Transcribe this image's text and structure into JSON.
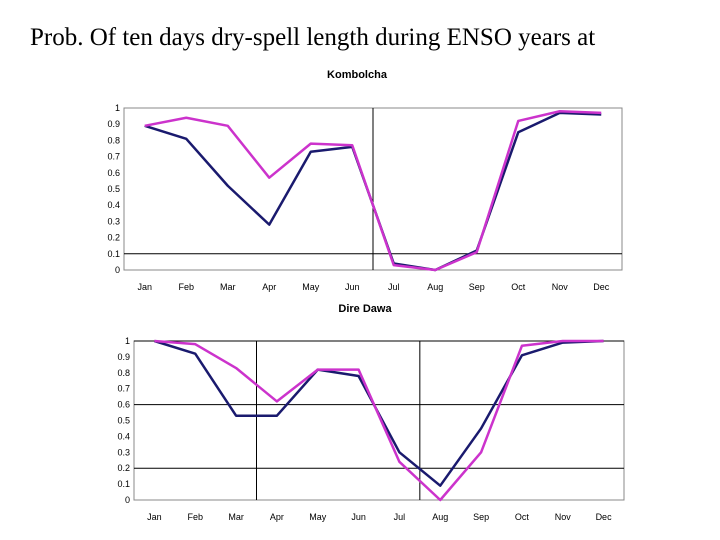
{
  "page": {
    "title": "Prob. Of ten days dry-spell length during ENSO years at"
  },
  "chart_data": [
    {
      "type": "line",
      "title": "Kombolcha",
      "categories": [
        "Jan",
        "Feb",
        "Mar",
        "Apr",
        "May",
        "Jun",
        "Jul",
        "Aug",
        "Sep",
        "Oct",
        "Nov",
        "Dec"
      ],
      "ylim": [
        0,
        1
      ],
      "yticks": [
        "0",
        "0.1",
        "0.2",
        "0.3",
        "0.4",
        "0.5",
        "0.6",
        "0.7",
        "0.8",
        "0.9",
        "1"
      ],
      "reference_line_y": 0.1,
      "reference_line_after_category": "Jun",
      "series": [
        {
          "color": "#1a1a6e",
          "values": [
            0.89,
            0.81,
            0.52,
            0.28,
            0.73,
            0.76,
            0.04,
            0.0,
            0.12,
            0.85,
            0.97,
            0.96
          ]
        },
        {
          "color": "#cc33cc",
          "values": [
            0.89,
            0.94,
            0.89,
            0.57,
            0.78,
            0.77,
            0.03,
            0.0,
            0.11,
            0.92,
            0.98,
            0.97
          ]
        }
      ]
    },
    {
      "type": "line",
      "title": "Dire  Dawa",
      "categories": [
        "Jan",
        "Feb",
        "Mar",
        "Apr",
        "May",
        "Jun",
        "Jul",
        "Aug",
        "Sep",
        "Oct",
        "Nov",
        "Dec"
      ],
      "ylim": [
        0,
        1
      ],
      "yticks": [
        "0",
        "0.1",
        "0.2",
        "0.3",
        "0.4",
        "0.5",
        "0.6",
        "0.7",
        "0.8",
        "0.9",
        "1"
      ],
      "grid_y": [
        0.2,
        0.6,
        1.0
      ],
      "grid_x_after_categories": [
        "Mar",
        "Jul"
      ],
      "series": [
        {
          "color": "#1a1a6e",
          "values": [
            1.0,
            0.92,
            0.53,
            0.53,
            0.82,
            0.78,
            0.3,
            0.09,
            0.45,
            0.91,
            0.99,
            1.0
          ]
        },
        {
          "color": "#cc33cc",
          "values": [
            1.0,
            0.98,
            0.83,
            0.62,
            0.82,
            0.82,
            0.24,
            0.0,
            0.3,
            0.97,
            1.0,
            1.0
          ]
        }
      ]
    }
  ]
}
